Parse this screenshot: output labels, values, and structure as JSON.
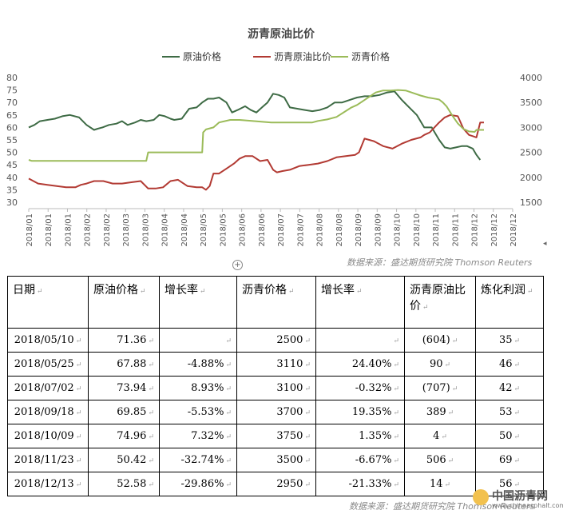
{
  "chart_data": {
    "type": "line",
    "title": "沥青原油比价",
    "legend_position": "top",
    "x_tick_labels": [
      "2018/01",
      "2018/01",
      "2018/01",
      "2018/02",
      "2018/02",
      "2018/03",
      "2018/03",
      "2018/04",
      "2018/04",
      "2018/05",
      "2018/05",
      "2018/06",
      "2018/06",
      "2018/07",
      "2018/07",
      "2018/08",
      "2018/08",
      "2018/09",
      "2018/09",
      "2018/10",
      "2018/10",
      "2018/11",
      "2018/11",
      "2018/12",
      "2018/12",
      "2018/12"
    ],
    "y_left_ticks": [
      "80",
      "75",
      "70",
      "65",
      "60",
      "55",
      "50",
      "45",
      "40",
      "35",
      "30"
    ],
    "y_right_ticks": [
      "4000",
      "3500",
      "3000",
      "2500",
      "2000",
      "1500"
    ],
    "y_left_range": [
      30,
      80
    ],
    "y_right_range": [
      1500,
      4000
    ],
    "x_range": [
      0,
      25
    ],
    "grid": false,
    "series": [
      {
        "name": "原油价格",
        "axis": "left",
        "color": "#3e6b45",
        "x": [
          0,
          0.3,
          0.6,
          1,
          1.4,
          1.8,
          2.2,
          2.7,
          3.1,
          3.5,
          3.7,
          3.95,
          4.3,
          4.7,
          5,
          5.3,
          5.7,
          6,
          6.3,
          6.7,
          7,
          7.3,
          7.6,
          7.8,
          8.2,
          8.6,
          9,
          9.3,
          9.6,
          9.9,
          10.2,
          10.6,
          10.9,
          11.2,
          11.6,
          11.9,
          12.2,
          12.5,
          12.8,
          13.1,
          13.4,
          13.7,
          14,
          14.4,
          14.8,
          15.2,
          15.6,
          16,
          16.4,
          16.8,
          17.2,
          17.6,
          18,
          18.4,
          18.8,
          19.2,
          19.6,
          20,
          20.4,
          20.8,
          21.2,
          21.6,
          22,
          22.3,
          22.6,
          22.9,
          23.2,
          23.5,
          23.8,
          24,
          24.2
        ],
        "values": [
          60,
          61,
          62.5,
          63,
          63.5,
          64.5,
          65,
          64,
          61,
          59,
          59.5,
          60,
          61,
          61.5,
          62.5,
          61,
          62,
          63,
          62.5,
          63,
          65,
          64.5,
          63.5,
          63,
          63.5,
          67.5,
          68,
          70,
          71.5,
          71.5,
          72,
          70,
          66,
          67,
          68.5,
          67,
          66,
          68,
          70,
          73.5,
          73,
          72,
          68,
          67.5,
          67,
          66.5,
          67,
          68,
          70,
          70,
          71,
          72,
          72.5,
          72.5,
          73,
          74,
          74.5,
          71,
          68,
          65,
          60,
          60,
          55,
          52,
          51.5,
          52,
          52.5,
          52.5,
          51.5,
          49,
          47
        ]
      },
      {
        "name": "沥青原油比价",
        "axis": "left",
        "color": "#b23a33",
        "x": [
          0,
          0.5,
          1,
          1.5,
          2,
          2.5,
          2.8,
          3.1,
          3.5,
          4,
          4.5,
          5,
          5.5,
          6,
          6.4,
          6.8,
          7.2,
          7.6,
          8,
          8.5,
          9,
          9.3,
          9.5,
          9.7,
          9.9,
          10.2,
          10.6,
          11,
          11.3,
          11.6,
          12,
          12.4,
          12.8,
          13.1,
          13.3,
          13.6,
          14,
          14.5,
          15,
          15.5,
          16,
          16.5,
          17,
          17.5,
          17.7,
          18,
          18.5,
          19,
          19.5,
          20,
          20.5,
          21,
          21.2,
          21.5,
          22,
          22.3,
          22.6,
          23,
          23.3,
          23.6,
          23.8,
          24,
          24.2,
          24.4
        ],
        "values": [
          39.5,
          37.5,
          37,
          36.5,
          36,
          36,
          37,
          37.5,
          38.5,
          38.5,
          37.5,
          37.5,
          38,
          38.5,
          35.5,
          35.5,
          36,
          38.5,
          39,
          36.5,
          36,
          36,
          35,
          36.5,
          41.5,
          41.5,
          43.5,
          45.5,
          47.5,
          48.5,
          48.5,
          46.5,
          47,
          43,
          42,
          42.5,
          43,
          44.5,
          45,
          45.5,
          46.5,
          48,
          48.5,
          49,
          50,
          55.5,
          54.5,
          52.5,
          51.5,
          53.5,
          55,
          56,
          57,
          58,
          62,
          64,
          65,
          64.5,
          59.5,
          57,
          56.5,
          56,
          62,
          62
        ]
      },
      {
        "name": "沥青价格",
        "axis": "right",
        "color": "#9bbb59",
        "x": [
          0,
          0.15,
          6.3,
          6.4,
          9.3,
          9.35,
          9.5,
          9.9,
          10.2,
          10.8,
          11.3,
          13,
          15.2,
          15.5,
          16,
          16.5,
          17.3,
          17.6,
          18,
          18.4,
          18.6,
          19,
          19.4,
          19.8,
          20.2,
          20.6,
          21,
          21.4,
          21.7,
          21.85,
          22,
          22.2,
          22.4,
          22.7,
          23,
          23.3,
          23.6,
          23.9,
          24,
          24.2,
          24.4
        ],
        "values": [
          2350,
          2330,
          2330,
          2500,
          2500,
          2900,
          2960,
          3000,
          3100,
          3150,
          3150,
          3100,
          3100,
          3130,
          3160,
          3210,
          3400,
          3450,
          3550,
          3650,
          3700,
          3740,
          3740,
          3750,
          3740,
          3690,
          3640,
          3600,
          3580,
          3570,
          3560,
          3500,
          3420,
          3240,
          3080,
          2970,
          2920,
          2910,
          2950,
          2950,
          2950
        ]
      }
    ]
  },
  "source_note": "数据来源：盛达期货研究院 Thomson Reuters",
  "table": {
    "headers": [
      "日期",
      "原油价格",
      "增长率",
      "沥青价格",
      "增长率",
      "沥青原油比价",
      "炼化利润"
    ],
    "rows": [
      [
        "2018/05/10",
        "71.36",
        "",
        "2500",
        "",
        "(604)",
        "35"
      ],
      [
        "2018/05/25",
        "67.88",
        "-4.88%",
        "3110",
        "24.40%",
        "90",
        "46"
      ],
      [
        "2018/07/02",
        "73.94",
        "8.93%",
        "3100",
        "-0.32%",
        "(707)",
        "42"
      ],
      [
        "2018/09/18",
        "69.85",
        "-5.53%",
        "3700",
        "19.35%",
        "389",
        "53"
      ],
      [
        "2018/10/09",
        "74.96",
        "7.32%",
        "3750",
        "1.35%",
        "4",
        "50"
      ],
      [
        "2018/11/23",
        "50.42",
        "-32.74%",
        "3500",
        "-6.67%",
        "506",
        "69"
      ],
      [
        "2018/12/13",
        "52.58",
        "-29.86%",
        "2950",
        "-21.33%",
        "14",
        "56"
      ]
    ]
  },
  "logo": {
    "text": "中国沥青网",
    "sub": "www.chinaasphalt.com"
  }
}
